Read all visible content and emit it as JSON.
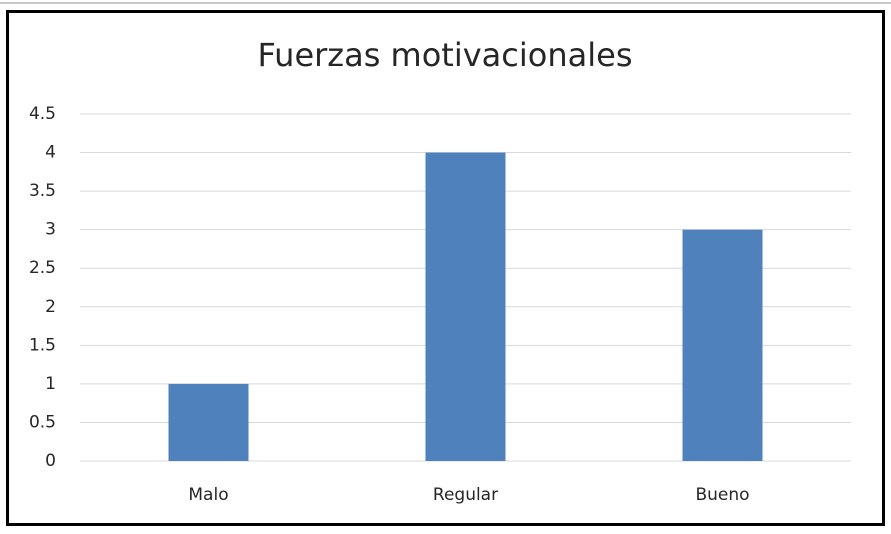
{
  "chart_data": {
    "type": "bar",
    "title": "Fuerzas motivacionales",
    "categories": [
      "Malo",
      "Regular",
      "Bueno"
    ],
    "values": [
      1,
      4,
      3
    ],
    "color": "#4f81bd",
    "ylim": [
      0,
      4.5
    ],
    "yticks": [
      0,
      0.5,
      1,
      1.5,
      2,
      2.5,
      3,
      3.5,
      4,
      4.5
    ],
    "grid": true
  }
}
